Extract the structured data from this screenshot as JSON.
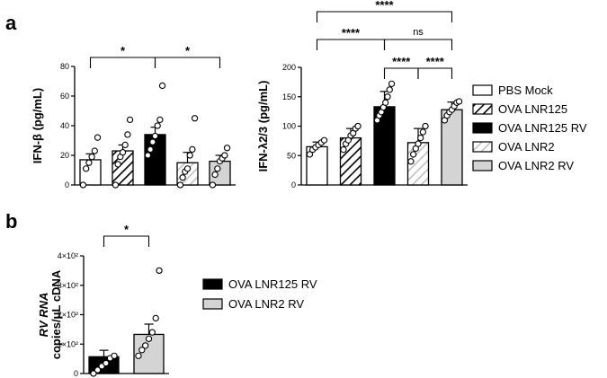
{
  "panels": [
    {
      "label": "a"
    },
    {
      "label": "b"
    }
  ],
  "colors": {
    "black": "#000000",
    "gray": "#d4d4d4",
    "white": "#ffffff"
  },
  "legend_a": [
    {
      "label": "PBS Mock",
      "fill": "white"
    },
    {
      "label": "OVA LNR125",
      "fill": "hatch"
    },
    {
      "label": "OVA LNR125 RV",
      "fill": "black"
    },
    {
      "label": "OVA LNR2",
      "fill": "hatch-gray"
    },
    {
      "label": "OVA LNR2 RV",
      "fill": "gray"
    }
  ],
  "legend_b": [
    {
      "label": "OVA LNR125 RV",
      "fill": "black"
    },
    {
      "label": "OVA LNR2 RV",
      "fill": "gray"
    }
  ],
  "chart_data": [
    {
      "type": "bar",
      "panel": "a",
      "ylabel": "IFN-β (pg/mL)",
      "ylim": [
        0,
        80
      ],
      "yticks": [
        "0",
        "20",
        "40",
        "60",
        "80"
      ],
      "groups": [
        "PBS Mock",
        "OVA LNR125",
        "OVA LNR125 RV",
        "OVA LNR2",
        "OVA LNR2 RV"
      ],
      "values": [
        17,
        23,
        34,
        15,
        16
      ],
      "errors": [
        4,
        4,
        5,
        7,
        4
      ],
      "points": [
        [
          0,
          11,
          15,
          19,
          23,
          32
        ],
        [
          0,
          14,
          19,
          22,
          27,
          34,
          44
        ],
        [
          20,
          24,
          29,
          33,
          40,
          44,
          67
        ],
        [
          0,
          5,
          9,
          11,
          20,
          24,
          45
        ],
        [
          0,
          7,
          11,
          16,
          18,
          20,
          25
        ]
      ],
      "significance": [
        {
          "from": 0,
          "to": 2,
          "label": "*"
        },
        {
          "from": 2,
          "to": 4,
          "label": "*"
        }
      ]
    },
    {
      "type": "bar",
      "panel": "a",
      "ylabel": "IFN-λ2/3 (pg/mL)",
      "ylim": [
        0,
        200
      ],
      "yticks": [
        "0",
        "50",
        "100",
        "150",
        "200"
      ],
      "groups": [
        "PBS Mock",
        "OVA LNR125",
        "OVA LNR125 RV",
        "OVA LNR2",
        "OVA LNR2 RV"
      ],
      "values": [
        65,
        80,
        133,
        72,
        128
      ],
      "errors": [
        8,
        16,
        26,
        24,
        13
      ],
      "points": [
        [
          52,
          60,
          64,
          68,
          72,
          76
        ],
        [
          60,
          70,
          76,
          84,
          88,
          96,
          100
        ],
        [
          110,
          118,
          124,
          132,
          140,
          150,
          162,
          172
        ],
        [
          40,
          52,
          62,
          70,
          80,
          90,
          100
        ],
        [
          110,
          118,
          124,
          128,
          134,
          140,
          142
        ]
      ],
      "significance": [
        {
          "from": 2,
          "to": 3,
          "label": "****"
        },
        {
          "from": 3,
          "to": 4,
          "label": "****"
        },
        {
          "from": 0,
          "to": 2,
          "label": "****"
        },
        {
          "from": 2,
          "to": 4,
          "label": "ns"
        },
        {
          "from": 0,
          "to": 4,
          "label": "****"
        }
      ]
    },
    {
      "type": "bar",
      "panel": "b",
      "ylabel_line1": "RV RNA",
      "ylabel_line2": "copies/μL cDNA",
      "ylim": [
        0,
        400
      ],
      "yticks": [
        "0",
        "1×10²",
        "2×10²",
        "3×10²",
        "4×10²"
      ],
      "groups": [
        "OVA LNR125 RV",
        "OVA LNR2 RV"
      ],
      "values": [
        57,
        133
      ],
      "errors": [
        22,
        35
      ],
      "points": [
        [
          0,
          12,
          25,
          35,
          52,
          60
        ],
        [
          60,
          80,
          95,
          118,
          140,
          188,
          350
        ]
      ],
      "significance": [
        {
          "from": 0,
          "to": 1,
          "label": "*"
        }
      ]
    }
  ]
}
